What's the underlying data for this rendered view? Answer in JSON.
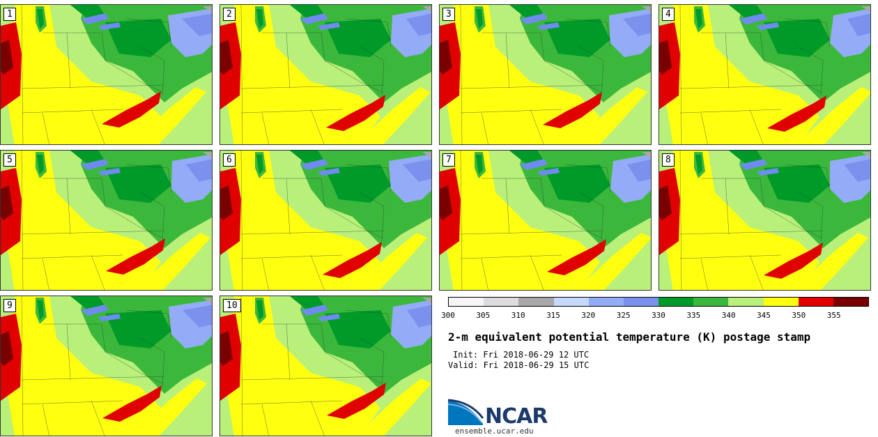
{
  "stamps": [
    {
      "label": "1"
    },
    {
      "label": "2"
    },
    {
      "label": "3"
    },
    {
      "label": "4"
    },
    {
      "label": "5"
    },
    {
      "label": "6"
    },
    {
      "label": "7"
    },
    {
      "label": "8"
    },
    {
      "label": "9"
    },
    {
      "label": "10"
    }
  ],
  "colorbar": {
    "colors": [
      "#f5f5f5",
      "#dcdcdc",
      "#a8a8a8",
      "#c6d8fb",
      "#94acf7",
      "#7c91ee",
      "#009a28",
      "#3bb83b",
      "#b8f07a",
      "#ffff10",
      "#e00000",
      "#7a0000"
    ],
    "tick_labels": [
      "300",
      "305",
      "310",
      "315",
      "320",
      "325",
      "330",
      "335",
      "340",
      "345",
      "350",
      "355"
    ]
  },
  "title": "2-m equivalent potential temperature (K) postage stamp",
  "init": "Init: Fri 2018-06-29 12 UTC",
  "valid": "Valid: Fri 2018-06-29 15 UTC",
  "logo": {
    "name": "NCAR",
    "url": "ensemble.ucar.edu",
    "colors": {
      "blue": "#0076bf",
      "navy": "#1b3a6b"
    }
  },
  "map_colors": {
    "red": "#e00000",
    "dark_red": "#7a0000",
    "yellow": "#ffff10",
    "light_green": "#b8f07a",
    "green": "#3bb83b",
    "dark_green": "#009a28",
    "blue": "#7c91ee",
    "light_blue": "#94acf7",
    "gray": "#a8a8a8",
    "water_blue": "#6f8bf0"
  }
}
